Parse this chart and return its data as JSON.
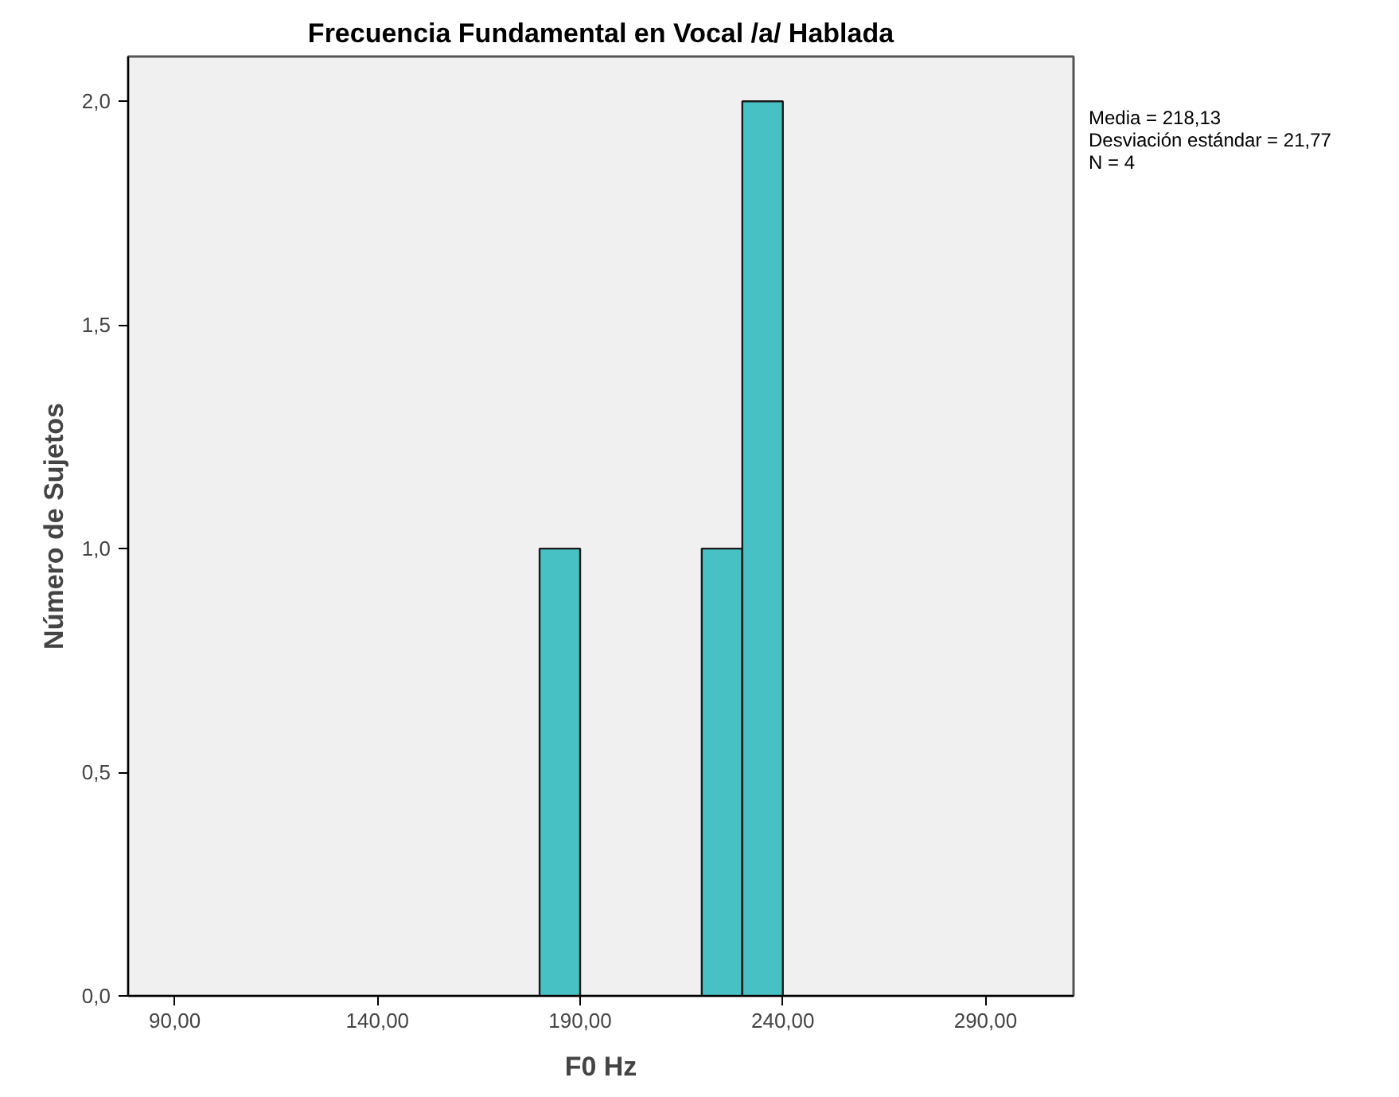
{
  "chart_data": {
    "type": "histogram",
    "title": "Frecuencia Fundamental en Vocal /a/ Hablada",
    "xlabel": "F0 Hz",
    "ylabel": "Número de Sujetos",
    "bins": [
      180,
      190,
      200,
      210,
      220,
      230,
      240
    ],
    "values": [
      1,
      0,
      0,
      0,
      1,
      2
    ],
    "color": "#48c1c4",
    "xlim": [
      78.5,
      311.7
    ],
    "ylim": [
      0,
      2.1
    ],
    "xticks": [
      {
        "value": 90,
        "label": "90,00"
      },
      {
        "value": 140,
        "label": "140,00"
      },
      {
        "value": 190,
        "label": "190,00"
      },
      {
        "value": 240,
        "label": "240,00"
      },
      {
        "value": 290,
        "label": "290,00"
      }
    ],
    "yticks": [
      {
        "value": 0,
        "label": "0,0"
      },
      {
        "value": 0.5,
        "label": "0,5"
      },
      {
        "value": 1,
        "label": "1,0"
      },
      {
        "value": 1.5,
        "label": "1,5"
      },
      {
        "value": 2,
        "label": "2,0"
      }
    ],
    "annotations": [
      "Media = 218,13",
      "Desviación estándar = 21,77",
      "N = 4"
    ],
    "grid": false
  }
}
